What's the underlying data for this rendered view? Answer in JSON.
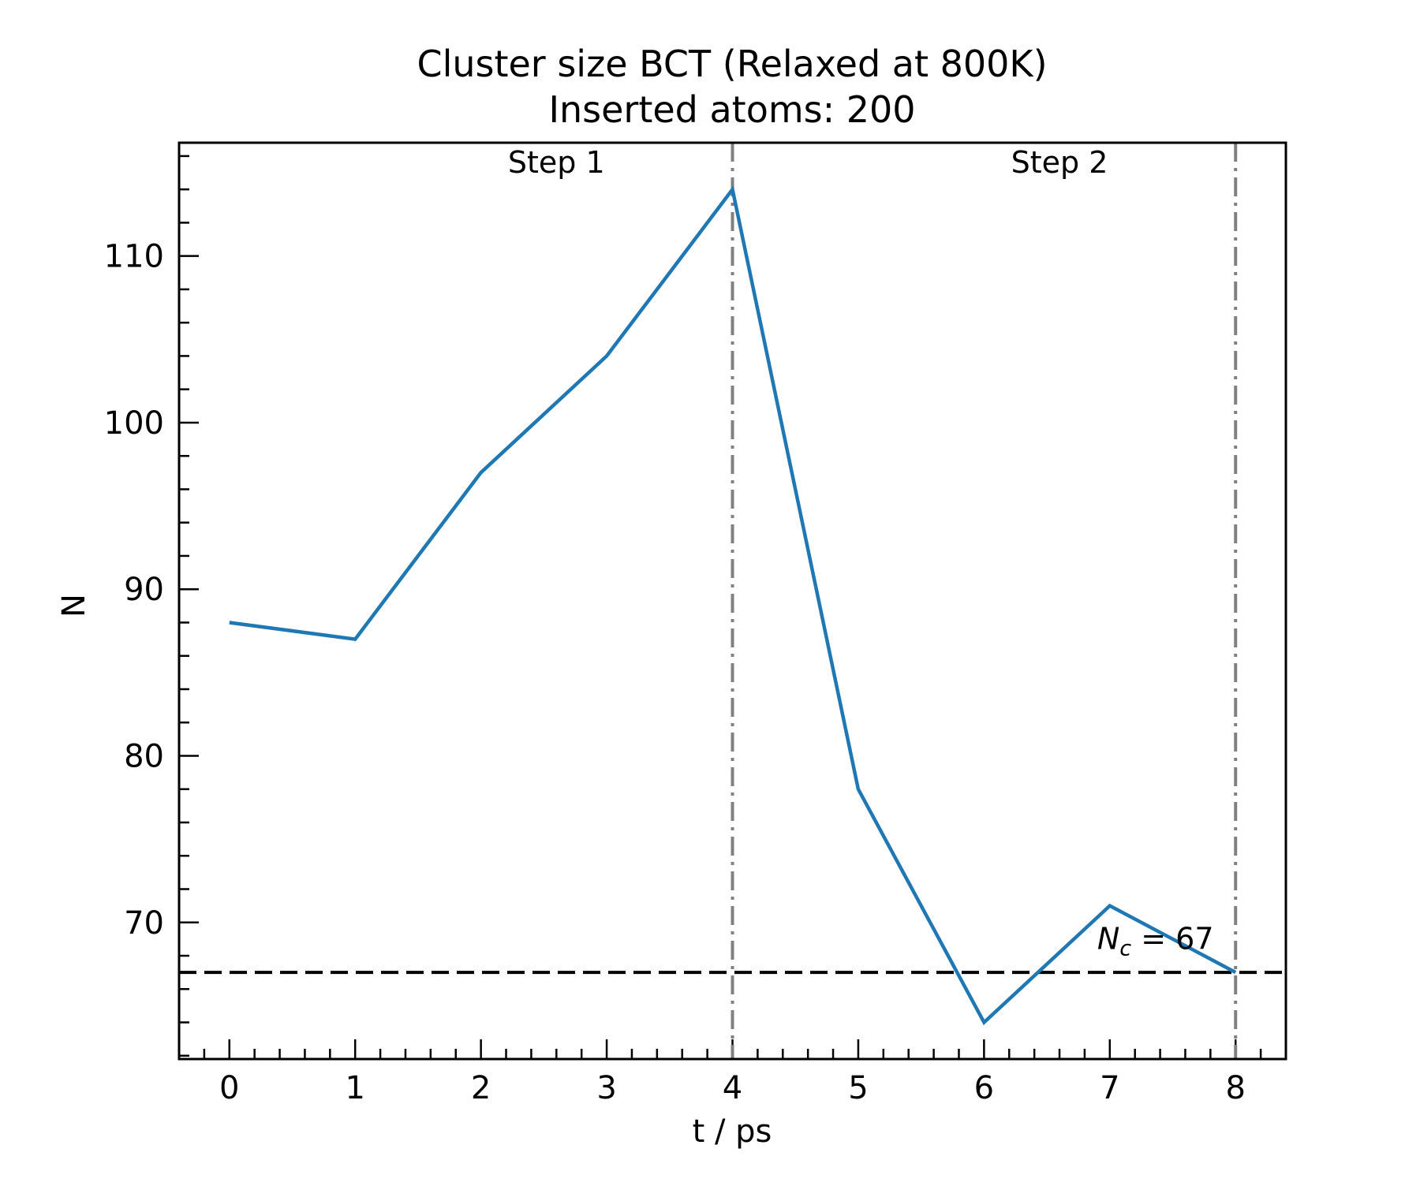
{
  "chart_data": {
    "type": "line",
    "title": "Cluster size BCT (Relaxed at 800K)",
    "subtitle": "Inserted atoms: 200",
    "xlabel": "t / ps",
    "ylabel": "N",
    "xlim": [
      -0.4,
      8.4
    ],
    "ylim": [
      61.8,
      116.8
    ],
    "x_ticks": [
      0,
      1,
      2,
      3,
      4,
      5,
      6,
      7,
      8
    ],
    "y_ticks": [
      70,
      80,
      90,
      100,
      110
    ],
    "x_minor_step": 0.2,
    "y_minor_step": 2,
    "grid": false,
    "series": [
      {
        "color": "#1f77b4",
        "x": [
          0,
          1,
          2,
          3,
          4,
          5,
          6,
          7,
          8
        ],
        "y": [
          88,
          87,
          97,
          104,
          114,
          78,
          64,
          71,
          67
        ]
      }
    ],
    "vlines": [
      {
        "x": 4,
        "color": "#808080",
        "style": "dashdot"
      },
      {
        "x": 8,
        "color": "#808080",
        "style": "dashdot"
      }
    ],
    "hline": {
      "y": 67,
      "color": "#000000",
      "style": "dashed"
    },
    "annotations": [
      {
        "text": "Step 1",
        "x": 2.6,
        "y": 115
      },
      {
        "text": "Step 2",
        "x": 6.6,
        "y": 115
      },
      {
        "text_main": "N",
        "text_sub": "c",
        "text_rest": " = 67",
        "x": 6.9,
        "y": 68.4
      }
    ]
  }
}
